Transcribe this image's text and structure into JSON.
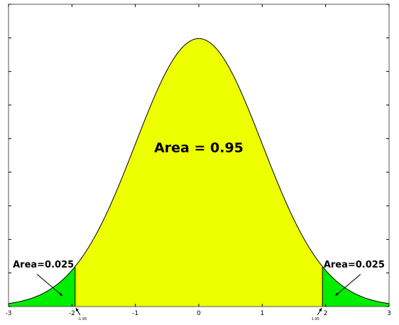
{
  "chart_data": {
    "type": "area",
    "title": "",
    "xlabel": "",
    "ylabel": "",
    "distribution": "standard normal",
    "xlim": [
      -3,
      3
    ],
    "ylim": [
      0,
      0.45
    ],
    "x_ticks": [
      -3,
      -2,
      -1,
      0,
      1,
      2,
      3
    ],
    "x_tick_labels": [
      "-3",
      "-2",
      "-1",
      "0",
      "1",
      "2",
      "3"
    ],
    "y_ticks": [
      0,
      0.05,
      0.1,
      0.15,
      0.2,
      0.25,
      0.3,
      0.35,
      0.4,
      0.45
    ],
    "y_tick_labels_shown": false,
    "critical_values": [
      -1.95,
      1.95
    ],
    "critical_labels": [
      "-1.95",
      "1.95"
    ],
    "regions": [
      {
        "from": -3,
        "to": -1.95,
        "color": "#00ee00",
        "area_label": "Area=0.025"
      },
      {
        "from": -1.95,
        "to": 1.95,
        "color": "#eeff00",
        "area_label": "Area = 0.95"
      },
      {
        "from": 1.95,
        "to": 3,
        "color": "#00ee00",
        "area_label": "Area=0.025"
      }
    ],
    "grid": false,
    "colors": {
      "tail": "#00ee00",
      "center": "#eeff00",
      "curve": "#000000",
      "axis": "#000000"
    }
  }
}
